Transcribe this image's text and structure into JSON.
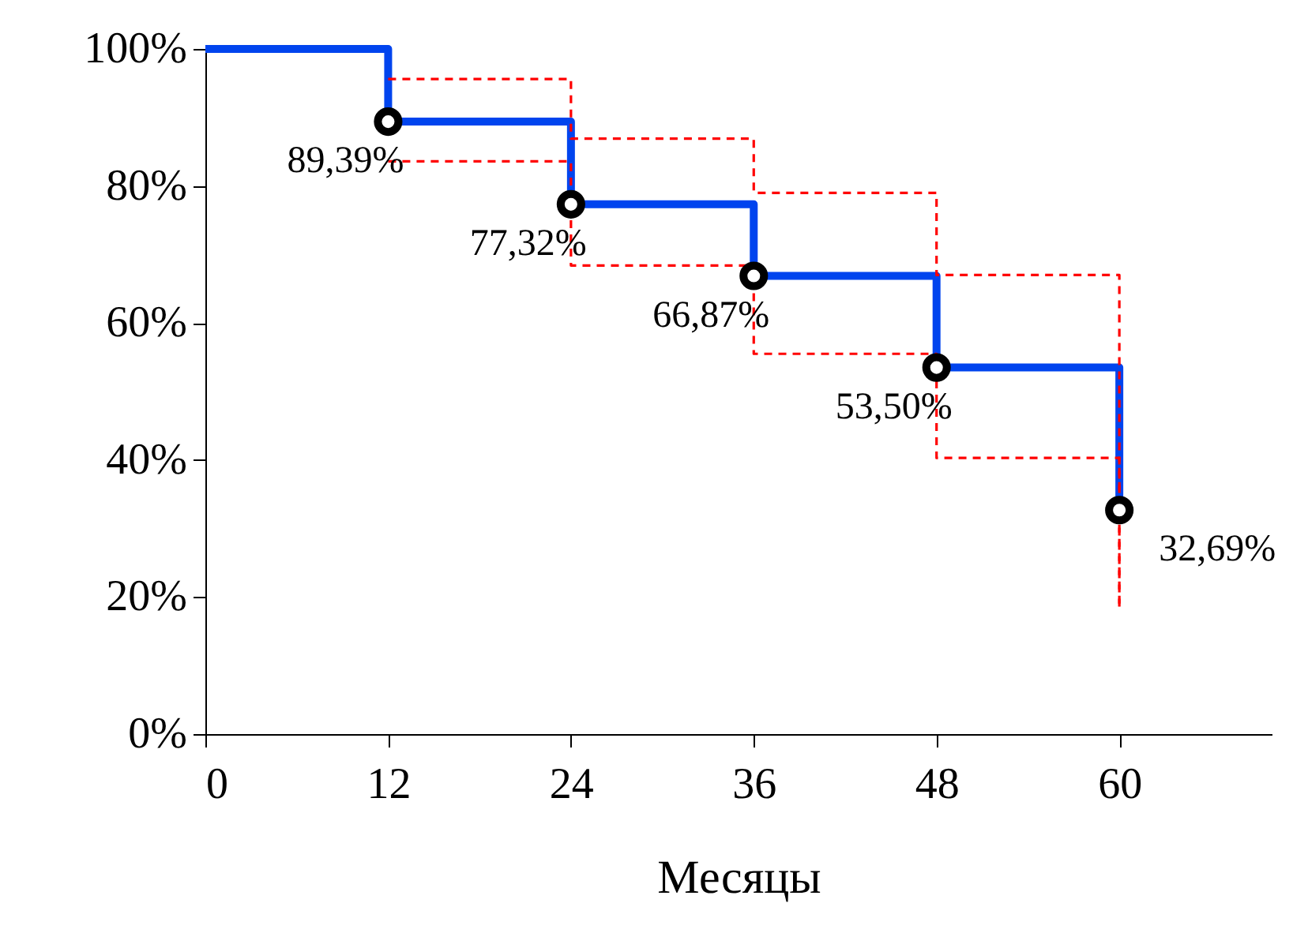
{
  "chart_data": {
    "type": "step",
    "xlabel": "Месяцы",
    "xlim": [
      0,
      70
    ],
    "xticks": [
      0,
      12,
      24,
      36,
      48,
      60
    ],
    "ylim": [
      0,
      100
    ],
    "yticks": [
      {
        "value": 0,
        "label": "0%"
      },
      {
        "value": 20,
        "label": "20%"
      },
      {
        "value": 40,
        "label": "40%"
      },
      {
        "value": 60,
        "label": "60%"
      },
      {
        "value": 80,
        "label": "80%"
      },
      {
        "value": 100,
        "label": "100%"
      }
    ],
    "grid": false,
    "series": [
      {
        "color": "#0044ee",
        "x": [
          0,
          12,
          24,
          36,
          48,
          60
        ],
        "values": [
          100,
          89.39,
          77.32,
          66.87,
          53.5,
          32.69
        ]
      },
      {
        "color": "#ff0000",
        "line_style": "dashed",
        "x": [
          12,
          24,
          36,
          48,
          60
        ],
        "values": [
          95.6,
          86.9,
          79,
          67,
          18.2
        ]
      },
      {
        "color": "#ff0000",
        "line_style": "dashed",
        "x": [
          12,
          24,
          36,
          48,
          60
        ],
        "values": [
          83.6,
          68.4,
          55.5,
          40.3,
          18.2
        ]
      },
      {
        "type": "scatter",
        "marker": "circle",
        "color": "#000000",
        "x": [
          12,
          24,
          36,
          48,
          60
        ],
        "values": [
          89.39,
          77.32,
          66.87,
          53.5,
          32.69
        ],
        "value_labels": [
          "89,39%",
          "77,32%",
          "66,87%",
          "53,50%",
          "32,69%"
        ]
      }
    ]
  }
}
